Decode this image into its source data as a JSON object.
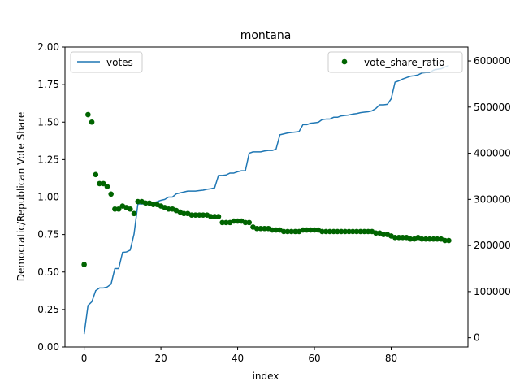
{
  "chart_data": {
    "type": "line+scatter",
    "title": "montana",
    "xlabel": "index",
    "ylabel": "Democratic/Republican Vote Share",
    "xlim": [
      -5,
      100
    ],
    "ylim_left": [
      0,
      2.0
    ],
    "ylim_right": [
      -20000,
      630000
    ],
    "xticks": [
      0,
      20,
      40,
      60,
      80
    ],
    "yticks_left": [
      "0.00",
      "0.25",
      "0.50",
      "0.75",
      "1.00",
      "1.25",
      "1.50",
      "1.75",
      "2.00"
    ],
    "yticks_right": [
      "0",
      "100000",
      "200000",
      "300000",
      "400000",
      "500000",
      "600000"
    ],
    "grid": false,
    "series": [
      {
        "name": "votes",
        "type": "line",
        "axis": "right",
        "color": "#1f77b4",
        "legend_position": "upper-left",
        "x": [
          0,
          1,
          2,
          3,
          4,
          5,
          6,
          7,
          8,
          9,
          10,
          11,
          12,
          13,
          14,
          15,
          16,
          17,
          18,
          19,
          20,
          21,
          22,
          23,
          24,
          25,
          26,
          27,
          28,
          29,
          30,
          31,
          32,
          33,
          34,
          35,
          36,
          37,
          38,
          39,
          40,
          41,
          42,
          43,
          44,
          45,
          46,
          47,
          48,
          49,
          50,
          51,
          52,
          53,
          54,
          55,
          56,
          57,
          58,
          59,
          60,
          61,
          62,
          63,
          64,
          65,
          66,
          67,
          68,
          69,
          70,
          71,
          72,
          73,
          74,
          75,
          76,
          77,
          78,
          79,
          80,
          81,
          82,
          83,
          84,
          85,
          86,
          87,
          88,
          89,
          90,
          91,
          92,
          93,
          94,
          95
        ],
        "values": [
          8000,
          70000,
          78000,
          102000,
          108000,
          108000,
          110000,
          116000,
          150000,
          150000,
          185000,
          186000,
          190000,
          225000,
          290000,
          290000,
          290000,
          292000,
          293000,
          295000,
          298000,
          300000,
          305000,
          305000,
          312000,
          314000,
          316000,
          318000,
          318000,
          318000,
          319000,
          320000,
          322000,
          323000,
          325000,
          352000,
          352000,
          353000,
          357000,
          357000,
          360000,
          362000,
          362000,
          400000,
          403000,
          403000,
          403000,
          405000,
          406000,
          406000,
          409000,
          440000,
          442000,
          444000,
          445000,
          446000,
          447000,
          462000,
          462000,
          465000,
          466000,
          467000,
          473000,
          474000,
          474000,
          478000,
          478000,
          481000,
          482000,
          483000,
          485000,
          486000,
          488000,
          489000,
          490000,
          492000,
          497000,
          505000,
          505000,
          506000,
          518000,
          554000,
          557000,
          561000,
          564000,
          567000,
          568000,
          570000,
          574000,
          575000,
          575000,
          580000,
          582000,
          583000,
          587000,
          590000
        ]
      },
      {
        "name": "vote_share_ratio",
        "type": "scatter",
        "axis": "left",
        "color": "#006400",
        "legend_position": "upper-right",
        "x": [
          0,
          1,
          2,
          3,
          4,
          5,
          6,
          7,
          8,
          9,
          10,
          11,
          12,
          13,
          14,
          15,
          16,
          17,
          18,
          19,
          20,
          21,
          22,
          23,
          24,
          25,
          26,
          27,
          28,
          29,
          30,
          31,
          32,
          33,
          34,
          35,
          36,
          37,
          38,
          39,
          40,
          41,
          42,
          43,
          44,
          45,
          46,
          47,
          48,
          49,
          50,
          51,
          52,
          53,
          54,
          55,
          56,
          57,
          58,
          59,
          60,
          61,
          62,
          63,
          64,
          65,
          66,
          67,
          68,
          69,
          70,
          71,
          72,
          73,
          74,
          75,
          76,
          77,
          78,
          79,
          80,
          81,
          82,
          83,
          84,
          85,
          86,
          87,
          88,
          89,
          90,
          91,
          92,
          93,
          94,
          95
        ],
        "values": [
          0.55,
          1.55,
          1.5,
          1.15,
          1.09,
          1.09,
          1.07,
          1.02,
          0.92,
          0.92,
          0.94,
          0.93,
          0.92,
          0.89,
          0.97,
          0.97,
          0.96,
          0.96,
          0.95,
          0.95,
          0.94,
          0.93,
          0.92,
          0.92,
          0.91,
          0.9,
          0.89,
          0.89,
          0.88,
          0.88,
          0.88,
          0.88,
          0.88,
          0.87,
          0.87,
          0.87,
          0.83,
          0.83,
          0.83,
          0.84,
          0.84,
          0.84,
          0.83,
          0.83,
          0.8,
          0.79,
          0.79,
          0.79,
          0.79,
          0.78,
          0.78,
          0.78,
          0.77,
          0.77,
          0.77,
          0.77,
          0.77,
          0.78,
          0.78,
          0.78,
          0.78,
          0.78,
          0.77,
          0.77,
          0.77,
          0.77,
          0.77,
          0.77,
          0.77,
          0.77,
          0.77,
          0.77,
          0.77,
          0.77,
          0.77,
          0.77,
          0.76,
          0.76,
          0.75,
          0.75,
          0.74,
          0.73,
          0.73,
          0.73,
          0.73,
          0.72,
          0.72,
          0.73,
          0.72,
          0.72,
          0.72,
          0.72,
          0.72,
          0.72,
          0.71,
          0.71
        ]
      }
    ]
  }
}
